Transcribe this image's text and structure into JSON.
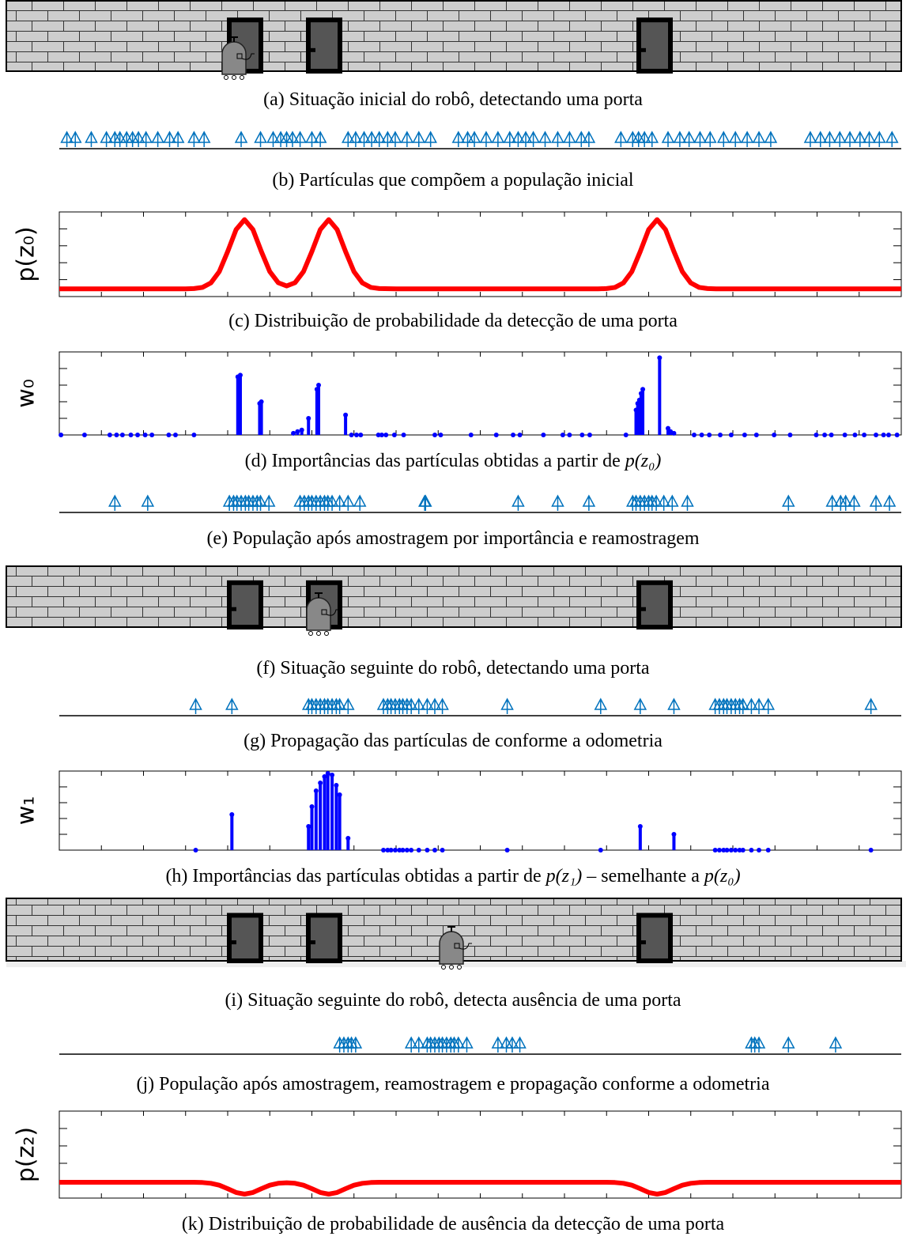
{
  "panels": [
    {
      "type": "scene",
      "caption": [
        "(a) Situação inicial do robô, detectando uma porta"
      ]
    },
    {
      "type": "particles",
      "caption": [
        "(b) Partículas que compõem a população inicial"
      ],
      "color": "#0072bd",
      "xlim": [
        0,
        100
      ],
      "x": [
        0.9,
        1.9,
        3.8,
        5.6,
        6.6,
        7.2,
        8.0,
        8.7,
        9.4,
        10.3,
        11.7,
        13.1,
        14.1,
        16.0,
        17.2,
        21.6,
        23.9,
        25.4,
        26.3,
        27.0,
        27.7,
        28.6,
        30.0,
        31.0,
        34.3,
        35.2,
        36.2,
        37.1,
        38.0,
        39.0,
        39.9,
        41.3,
        42.7,
        44.1,
        47.4,
        48.5,
        49.3,
        50.7,
        52.1,
        53.5,
        54.5,
        55.4,
        56.3,
        57.7,
        59.2,
        60.6,
        62.0,
        62.9,
        66.7,
        68.1,
        68.8,
        69.5,
        70.4,
        72.3,
        73.7,
        74.8,
        76.1,
        77.3,
        78.9,
        80.3,
        81.7,
        83.1,
        84.5,
        89.2,
        90.4,
        91.5,
        92.7,
        93.9,
        95.1,
        96.2,
        97.4,
        98.9
      ]
    },
    {
      "type": "curve",
      "caption": [
        "(c) Distribuição de probabilidade da detecção de uma porta"
      ],
      "ylabel": "p(z₀)",
      "color": "#ff0000",
      "xlim": [
        0,
        100
      ],
      "ylim": [
        0,
        1.1
      ],
      "x": [
        0,
        10,
        15,
        16,
        17,
        18,
        19,
        20,
        21,
        22,
        23,
        24,
        25,
        26,
        27,
        28,
        29,
        30,
        31,
        32,
        33,
        34,
        35,
        36,
        37,
        38,
        40,
        60,
        64,
        65,
        66,
        67,
        68,
        69,
        70,
        71,
        72,
        73,
        74,
        75,
        76,
        77,
        78,
        100
      ],
      "values": [
        0.1,
        0.1,
        0.1,
        0.104,
        0.119,
        0.177,
        0.324,
        0.585,
        0.871,
        1,
        0.871,
        0.585,
        0.324,
        0.18,
        0.138,
        0.18,
        0.324,
        0.585,
        0.871,
        1,
        0.871,
        0.585,
        0.324,
        0.177,
        0.119,
        0.104,
        0.1,
        0.1,
        0.1,
        0.104,
        0.119,
        0.177,
        0.324,
        0.585,
        0.871,
        1,
        0.871,
        0.585,
        0.324,
        0.177,
        0.119,
        0.104,
        0.1,
        0.1
      ]
    },
    {
      "type": "weights",
      "caption": [
        "(d) Importâncias das partículas obtidas a partir de ",
        {
          "math": "p(z₀)"
        }
      ],
      "ylabel": "w₀",
      "color": "#0000ff",
      "xlim": [
        0,
        100
      ],
      "ylim": [
        0,
        1
      ],
      "x": [
        0.2,
        3.0,
        6.0,
        6.8,
        7.5,
        8.5,
        9.3,
        10.2,
        11.0,
        13.0,
        13.8,
        16.0,
        21.2,
        21.5,
        23.8,
        24.0,
        27.8,
        28.3,
        28.8,
        29.6,
        30.6,
        30.8,
        34.0,
        34.7,
        35.3,
        35.8,
        37.9,
        38.3,
        38.8,
        39.8,
        40.9,
        44.6,
        45.3,
        48.9,
        51.9,
        53.9,
        54.7,
        57.5,
        59.8,
        60.6,
        62.1,
        63.0,
        67.3,
        68.5,
        68.7,
        68.9,
        69.1,
        69.3,
        71.3,
        72.3,
        72.6,
        73.0,
        75.4,
        76.3,
        77.2,
        78.5,
        79.8,
        81.4,
        82.8,
        84.9,
        86.8,
        89.9,
        90.9,
        91.7,
        93.3,
        94.5,
        95.6,
        97.0,
        97.9,
        98.5,
        99.5
      ],
      "values": [
        0,
        0,
        0,
        0,
        0,
        0,
        0,
        0,
        0,
        0,
        0,
        0,
        0.7,
        0.72,
        0.38,
        0.4,
        0.02,
        0.04,
        0.06,
        0.2,
        0.55,
        0.6,
        0.24,
        0,
        0,
        0,
        0,
        0,
        0,
        0,
        0,
        0,
        0,
        0,
        0,
        0,
        0,
        0,
        0,
        0,
        0,
        0,
        0,
        0.3,
        0.38,
        0.42,
        0.5,
        0.55,
        0.93,
        0.08,
        0.04,
        0.02,
        0,
        0,
        0,
        0,
        0,
        0,
        0,
        0,
        0,
        0,
        0,
        0,
        0,
        0,
        0,
        0,
        0,
        0,
        0
      ]
    },
    {
      "type": "particles",
      "caption": [
        "(e) População após amostragem por importância e reamostragem"
      ],
      "color": "#0072bd",
      "xlim": [
        0,
        100
      ],
      "x": [
        6.6,
        10.5,
        20.2,
        20.7,
        21.1,
        21.6,
        22.1,
        22.5,
        23.0,
        23.5,
        23.9,
        24.9,
        28.6,
        29.1,
        29.6,
        30.0,
        30.5,
        31.0,
        31.5,
        31.9,
        32.4,
        33.3,
        34.3,
        35.7,
        43.4,
        43.5,
        54.5,
        59.2,
        62.9,
        68.1,
        68.5,
        69.0,
        69.5,
        70.0,
        70.4,
        70.9,
        71.8,
        72.8,
        74.6,
        86.6,
        91.8,
        92.8,
        93.4,
        94.4,
        97.0,
        98.6
      ]
    },
    {
      "type": "scene",
      "caption": [
        "(f) Situação seguinte do robô, detectando uma porta"
      ]
    },
    {
      "type": "particles",
      "caption": [
        "(g) Propagação das partículas de conforme a odometria"
      ],
      "color": "#0072bd",
      "xlim": [
        0,
        100
      ],
      "x": [
        16.2,
        20.5,
        29.6,
        30.0,
        30.5,
        31.0,
        31.5,
        31.9,
        32.4,
        32.9,
        33.3,
        34.3,
        38.5,
        39.0,
        39.4,
        39.9,
        40.4,
        40.8,
        41.3,
        41.8,
        42.7,
        43.7,
        44.6,
        45.5,
        53.2,
        64.3,
        69.0,
        73.0,
        77.9,
        78.4,
        78.9,
        79.3,
        79.8,
        80.3,
        80.8,
        81.2,
        82.2,
        83.1,
        84.2,
        96.4
      ]
    },
    {
      "type": "weights",
      "caption": [
        "(h) Importâncias das partículas obtidas a partir de ",
        {
          "math": "p(z₁)"
        },
        " – semelhante a ",
        {
          "math": "p(z₀)"
        }
      ],
      "ylabel": "w₁",
      "color": "#0000ff",
      "xlim": [
        0,
        100
      ],
      "ylim": [
        0,
        1
      ],
      "x": [
        16.2,
        20.5,
        29.6,
        30.0,
        30.5,
        31.0,
        31.5,
        31.9,
        32.4,
        32.9,
        33.3,
        34.3,
        38.5,
        39.0,
        39.4,
        39.9,
        40.4,
        40.8,
        41.3,
        41.8,
        42.7,
        43.7,
        44.6,
        45.5,
        53.2,
        64.3,
        69.0,
        73.0,
        77.9,
        78.4,
        78.9,
        79.3,
        79.8,
        80.3,
        80.8,
        81.2,
        82.2,
        83.1,
        84.2,
        96.4
      ],
      "values": [
        0,
        0.45,
        0.3,
        0.55,
        0.75,
        0.85,
        0.93,
        0.97,
        0.95,
        0.82,
        0.7,
        0.15,
        0,
        0,
        0,
        0,
        0,
        0,
        0,
        0,
        0,
        0,
        0,
        0,
        0,
        0,
        0.3,
        0.2,
        0,
        0,
        0,
        0,
        0,
        0,
        0,
        0,
        0,
        0,
        0,
        0
      ]
    },
    {
      "type": "scene",
      "caption": [
        "(i) Situação seguinte do robô, detecta ausência de uma porta"
      ]
    },
    {
      "type": "particles",
      "caption": [
        "(j) População após amostragem, reamostragem e propagação conforme a odometria"
      ],
      "color": "#0072bd",
      "xlim": [
        0,
        100
      ],
      "x": [
        33.3,
        33.8,
        34.3,
        34.7,
        35.2,
        41.8,
        42.7,
        43.7,
        44.1,
        44.6,
        45.1,
        45.5,
        46.0,
        46.5,
        46.9,
        47.4,
        48.4,
        52.1,
        53.1,
        53.8,
        54.7,
        82.2,
        82.6,
        83.1,
        86.6,
        92.2
      ]
    },
    {
      "type": "curve",
      "caption": [
        "(k) Distribuição de probabilidade de ausência da detecção de uma porta"
      ],
      "ylabel": "p(z₂)",
      "color": "#ff0000",
      "xlim": [
        0,
        100
      ],
      "ylim": [
        0,
        1.1
      ],
      "x": [
        0,
        10,
        15,
        16,
        17,
        18,
        19,
        20,
        21,
        22,
        23,
        24,
        25,
        26,
        27,
        28,
        29,
        30,
        31,
        32,
        33,
        34,
        35,
        36,
        37,
        38,
        40,
        60,
        64,
        65,
        66,
        67,
        68,
        69,
        70,
        71,
        72,
        73,
        74,
        75,
        76,
        77,
        78,
        100
      ],
      "values": [
        0.2,
        0.2,
        0.2,
        0.2,
        0.197,
        0.187,
        0.163,
        0.119,
        0.071,
        0.05,
        0.071,
        0.119,
        0.163,
        0.187,
        0.194,
        0.187,
        0.163,
        0.119,
        0.071,
        0.05,
        0.071,
        0.119,
        0.163,
        0.187,
        0.197,
        0.2,
        0.2,
        0.2,
        0.2,
        0.2,
        0.197,
        0.187,
        0.163,
        0.119,
        0.071,
        0.05,
        0.071,
        0.119,
        0.163,
        0.187,
        0.197,
        0.2,
        0.2,
        0.2
      ]
    }
  ]
}
